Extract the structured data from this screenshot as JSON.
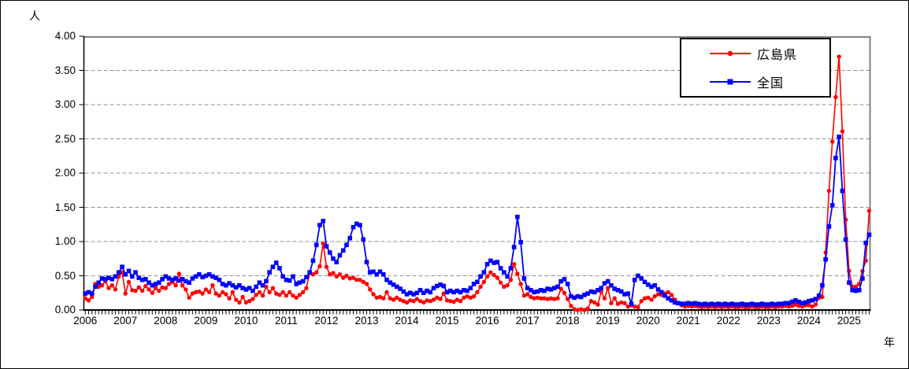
{
  "page": {
    "background": "#FFFFFF",
    "border_color": "#000000"
  },
  "chart_data": {
    "type": "line",
    "title": "",
    "y_unit_label": "人",
    "x_unit_label": "年",
    "ylim": [
      0,
      4
    ],
    "y_tick_step": 0.5,
    "y_tick_labels": [
      "0.00",
      "0.50",
      "1.00",
      "1.50",
      "2.00",
      "2.50",
      "3.00",
      "3.50",
      "4.00"
    ],
    "x_year_labels": [
      "2006",
      "2007",
      "2008",
      "2009",
      "2010",
      "2011",
      "2012",
      "2013",
      "2014",
      "2015",
      "2016",
      "2017",
      "2018",
      "2019",
      "2020",
      "2021",
      "2022",
      "2023",
      "2024",
      "2025"
    ],
    "x_start": "2006-01",
    "x_end": "2025-07",
    "x_frequency": "monthly",
    "grid": "horizontal dashed lines every 0.50",
    "grid_color": "#909090",
    "plot_border_color": "#808080",
    "axis_color": "#000000",
    "legend_position": "top-right",
    "series": [
      {
        "name": "広島県",
        "color": "#FF0000",
        "marker": "circle",
        "values": [
          0.17,
          0.14,
          0.19,
          0.38,
          0.34,
          0.36,
          0.42,
          0.32,
          0.36,
          0.3,
          0.49,
          0.55,
          0.24,
          0.41,
          0.29,
          0.28,
          0.33,
          0.28,
          0.35,
          0.3,
          0.25,
          0.32,
          0.28,
          0.33,
          0.32,
          0.38,
          0.41,
          0.36,
          0.53,
          0.36,
          0.3,
          0.18,
          0.24,
          0.26,
          0.27,
          0.24,
          0.3,
          0.26,
          0.36,
          0.24,
          0.21,
          0.26,
          0.23,
          0.17,
          0.26,
          0.15,
          0.11,
          0.19,
          0.11,
          0.13,
          0.16,
          0.22,
          0.26,
          0.21,
          0.34,
          0.26,
          0.32,
          0.24,
          0.22,
          0.26,
          0.21,
          0.26,
          0.21,
          0.18,
          0.22,
          0.26,
          0.32,
          0.54,
          0.52,
          0.55,
          0.64,
          0.97,
          0.63,
          0.52,
          0.54,
          0.49,
          0.52,
          0.47,
          0.5,
          0.46,
          0.47,
          0.44,
          0.44,
          0.41,
          0.38,
          0.3,
          0.23,
          0.18,
          0.19,
          0.17,
          0.26,
          0.17,
          0.15,
          0.18,
          0.15,
          0.13,
          0.11,
          0.14,
          0.13,
          0.16,
          0.13,
          0.11,
          0.14,
          0.13,
          0.15,
          0.18,
          0.16,
          0.24,
          0.14,
          0.13,
          0.12,
          0.15,
          0.13,
          0.18,
          0.2,
          0.18,
          0.2,
          0.26,
          0.34,
          0.41,
          0.49,
          0.55,
          0.51,
          0.47,
          0.4,
          0.34,
          0.36,
          0.44,
          0.67,
          0.53,
          0.38,
          0.21,
          0.23,
          0.19,
          0.17,
          0.18,
          0.17,
          0.17,
          0.16,
          0.17,
          0.16,
          0.17,
          0.31,
          0.25,
          0.16,
          0.06,
          0.01,
          0.0,
          0.01,
          0.0,
          0.02,
          0.13,
          0.11,
          0.08,
          0.27,
          0.17,
          0.32,
          0.1,
          0.17,
          0.09,
          0.11,
          0.1,
          0.05,
          0.07,
          0.05,
          0.04,
          0.13,
          0.17,
          0.18,
          0.15,
          0.2,
          0.23,
          0.22,
          0.24,
          0.26,
          0.22,
          0.15,
          0.1,
          0.07,
          0.05,
          0.06,
          0.05,
          0.06,
          0.05,
          0.04,
          0.05,
          0.04,
          0.05,
          0.04,
          0.05,
          0.04,
          0.05,
          0.04,
          0.05,
          0.04,
          0.04,
          0.05,
          0.04,
          0.04,
          0.05,
          0.04,
          0.04,
          0.05,
          0.04,
          0.04,
          0.05,
          0.04,
          0.05,
          0.05,
          0.06,
          0.05,
          0.06,
          0.08,
          0.06,
          0.05,
          0.07,
          0.07,
          0.05,
          0.08,
          0.18,
          0.19,
          0.84,
          1.74,
          2.46,
          3.11,
          3.7,
          2.61,
          1.32,
          0.57,
          0.34,
          0.34,
          0.38,
          0.57,
          0.72,
          1.45
        ]
      },
      {
        "name": "全国",
        "color": "#0000FF",
        "marker": "square",
        "values": [
          0.24,
          0.26,
          0.24,
          0.34,
          0.4,
          0.46,
          0.45,
          0.47,
          0.45,
          0.49,
          0.55,
          0.63,
          0.52,
          0.57,
          0.49,
          0.55,
          0.47,
          0.44,
          0.45,
          0.4,
          0.36,
          0.38,
          0.4,
          0.45,
          0.49,
          0.46,
          0.44,
          0.46,
          0.43,
          0.45,
          0.42,
          0.4,
          0.46,
          0.49,
          0.52,
          0.48,
          0.5,
          0.52,
          0.49,
          0.47,
          0.44,
          0.38,
          0.36,
          0.39,
          0.36,
          0.33,
          0.36,
          0.32,
          0.3,
          0.32,
          0.28,
          0.34,
          0.4,
          0.36,
          0.42,
          0.55,
          0.63,
          0.69,
          0.61,
          0.49,
          0.44,
          0.43,
          0.49,
          0.38,
          0.4,
          0.42,
          0.48,
          0.55,
          0.72,
          0.95,
          1.24,
          1.3,
          0.93,
          0.84,
          0.75,
          0.7,
          0.8,
          0.87,
          0.95,
          1.05,
          1.21,
          1.26,
          1.24,
          1.03,
          0.7,
          0.55,
          0.56,
          0.52,
          0.56,
          0.52,
          0.44,
          0.4,
          0.37,
          0.34,
          0.31,
          0.27,
          0.23,
          0.25,
          0.23,
          0.25,
          0.29,
          0.25,
          0.28,
          0.26,
          0.32,
          0.35,
          0.37,
          0.35,
          0.26,
          0.28,
          0.26,
          0.28,
          0.26,
          0.29,
          0.28,
          0.32,
          0.38,
          0.41,
          0.49,
          0.55,
          0.67,
          0.72,
          0.69,
          0.7,
          0.61,
          0.55,
          0.49,
          0.61,
          0.92,
          1.36,
          0.99,
          0.46,
          0.32,
          0.29,
          0.26,
          0.27,
          0.29,
          0.28,
          0.31,
          0.3,
          0.32,
          0.34,
          0.42,
          0.45,
          0.38,
          0.2,
          0.18,
          0.2,
          0.19,
          0.22,
          0.24,
          0.27,
          0.26,
          0.29,
          0.32,
          0.39,
          0.42,
          0.36,
          0.31,
          0.29,
          0.27,
          0.23,
          0.24,
          0.09,
          0.44,
          0.5,
          0.46,
          0.41,
          0.37,
          0.34,
          0.36,
          0.3,
          0.26,
          0.21,
          0.17,
          0.14,
          0.11,
          0.1,
          0.09,
          0.09,
          0.1,
          0.09,
          0.1,
          0.09,
          0.08,
          0.09,
          0.08,
          0.09,
          0.08,
          0.09,
          0.08,
          0.09,
          0.08,
          0.09,
          0.08,
          0.08,
          0.09,
          0.08,
          0.08,
          0.09,
          0.08,
          0.08,
          0.09,
          0.08,
          0.08,
          0.09,
          0.08,
          0.09,
          0.09,
          0.1,
          0.1,
          0.12,
          0.14,
          0.12,
          0.1,
          0.11,
          0.13,
          0.14,
          0.16,
          0.21,
          0.36,
          0.74,
          1.22,
          1.53,
          2.22,
          2.53,
          1.74,
          1.03,
          0.4,
          0.29,
          0.28,
          0.29,
          0.46,
          0.98,
          1.1
        ]
      }
    ]
  }
}
